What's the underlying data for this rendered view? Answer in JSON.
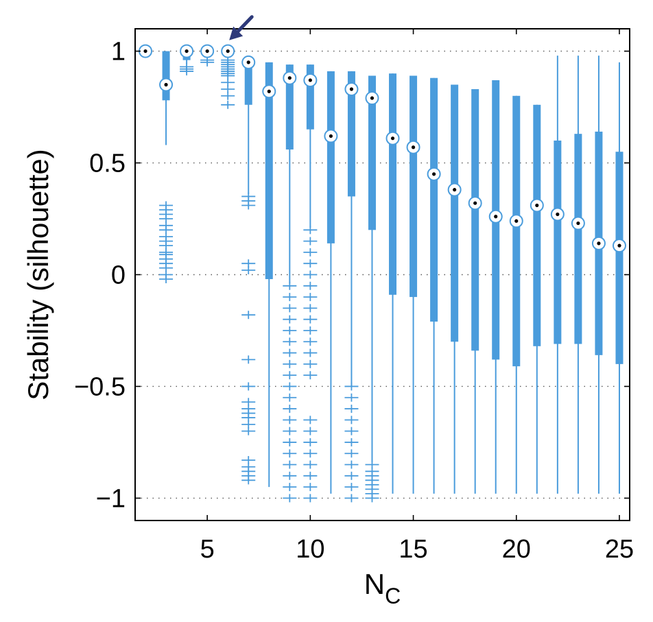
{
  "chart_data": {
    "type": "box",
    "xlabel": "N",
    "xlabel_subscript": "C",
    "ylabel": "Stability (silhouette)",
    "xlim": [
      1.5,
      25.5
    ],
    "ylim": [
      -1.1,
      1.1
    ],
    "x_ticks": [
      5,
      10,
      15,
      20,
      25
    ],
    "y_ticks": [
      1,
      0.5,
      0,
      -0.5,
      -1
    ],
    "y_tick_labels": [
      "1",
      "0.5",
      "0",
      "−0.5",
      "−1"
    ],
    "grid": "horizontal-dotted",
    "series_color": "#4a9cdc",
    "annotation_arrow": {
      "points_to_x": 6,
      "color": "#2e3a7a"
    },
    "boxes": [
      {
        "x": 2,
        "median": 1.0,
        "q1": 1.0,
        "q3": 1.0,
        "whisker_low": 1.0,
        "whisker_high": 1.0,
        "outliers": []
      },
      {
        "x": 3,
        "median": 0.85,
        "q1": 0.78,
        "q3": 1.0,
        "whisker_low": 0.58,
        "whisker_high": 1.0,
        "outliers": [
          0.31,
          0.29,
          0.27,
          0.25,
          0.22,
          0.2,
          0.17,
          0.15,
          0.13,
          0.1,
          0.09,
          0.07,
          0.05,
          0.03,
          0.0,
          -0.02
        ]
      },
      {
        "x": 4,
        "median": 1.0,
        "q1": 0.96,
        "q3": 1.0,
        "whisker_low": 0.94,
        "whisker_high": 1.0,
        "outliers": [
          0.93,
          0.92,
          0.91
        ]
      },
      {
        "x": 5,
        "median": 1.0,
        "q1": 0.98,
        "q3": 1.0,
        "whisker_low": 0.97,
        "whisker_high": 1.0,
        "outliers": [
          0.96,
          0.95
        ]
      },
      {
        "x": 6,
        "median": 1.0,
        "q1": 1.0,
        "q3": 1.0,
        "whisker_low": 1.0,
        "whisker_high": 1.0,
        "outliers": [
          0.96,
          0.95,
          0.94,
          0.93,
          0.92,
          0.91,
          0.9,
          0.89,
          0.86,
          0.83,
          0.8,
          0.76
        ]
      },
      {
        "x": 7,
        "median": 0.95,
        "q1": 0.76,
        "q3": 0.95,
        "whisker_low": 0.36,
        "whisker_high": 0.95,
        "outliers": [
          0.35,
          0.33,
          0.31,
          0.05,
          0.02,
          -0.18,
          -0.38,
          -0.5,
          -0.57,
          -0.6,
          -0.62,
          -0.64,
          -0.67,
          -0.7,
          -0.83,
          -0.86,
          -0.88,
          -0.9,
          -0.92
        ]
      },
      {
        "x": 8,
        "median": 0.82,
        "q1": -0.02,
        "q3": 0.95,
        "whisker_low": -0.95,
        "whisker_high": 0.95,
        "outliers": []
      },
      {
        "x": 9,
        "median": 0.88,
        "q1": 0.56,
        "q3": 0.94,
        "whisker_low": -0.04,
        "whisker_high": 0.94,
        "outliers": [
          -0.05,
          -0.1,
          -0.15,
          -0.2,
          -0.25,
          -0.3,
          -0.35,
          -0.4,
          -0.45,
          -0.5,
          -0.55,
          -0.6,
          -0.65,
          -0.7,
          -0.75,
          -0.8,
          -0.85,
          -0.9,
          -0.95,
          -1.0
        ]
      },
      {
        "x": 10,
        "median": 0.87,
        "q1": 0.65,
        "q3": 0.94,
        "whisker_low": 0.21,
        "whisker_high": 0.94,
        "outliers": [
          0.2,
          0.15,
          0.1,
          0.05,
          0.0,
          -0.05,
          -0.1,
          -0.15,
          -0.2,
          -0.25,
          -0.3,
          -0.35,
          -0.4,
          -0.45,
          -0.65,
          -0.7,
          -0.75,
          -0.8,
          -0.85,
          -0.9,
          -0.95,
          -1.0
        ]
      },
      {
        "x": 11,
        "median": 0.62,
        "q1": 0.14,
        "q3": 0.91,
        "whisker_low": -0.98,
        "whisker_high": 0.91,
        "outliers": []
      },
      {
        "x": 12,
        "median": 0.83,
        "q1": 0.35,
        "q3": 0.91,
        "whisker_low": -0.5,
        "whisker_high": 0.91,
        "outliers": [
          -0.5,
          -0.55,
          -0.6,
          -0.65,
          -0.7,
          -0.75,
          -0.8,
          -0.85,
          -0.9,
          -0.95,
          -1.0
        ]
      },
      {
        "x": 13,
        "median": 0.79,
        "q1": 0.2,
        "q3": 0.89,
        "whisker_low": -0.84,
        "whisker_high": 0.89,
        "outliers": [
          -0.85,
          -0.88,
          -0.9,
          -0.92,
          -0.94,
          -0.96,
          -0.98,
          -1.0
        ]
      },
      {
        "x": 14,
        "median": 0.61,
        "q1": -0.09,
        "q3": 0.9,
        "whisker_low": -0.98,
        "whisker_high": 0.9,
        "outliers": []
      },
      {
        "x": 15,
        "median": 0.57,
        "q1": -0.1,
        "q3": 0.89,
        "whisker_low": -0.98,
        "whisker_high": 0.89,
        "outliers": []
      },
      {
        "x": 16,
        "median": 0.45,
        "q1": -0.21,
        "q3": 0.88,
        "whisker_low": -0.98,
        "whisker_high": 0.88,
        "outliers": []
      },
      {
        "x": 17,
        "median": 0.38,
        "q1": -0.3,
        "q3": 0.85,
        "whisker_low": -0.98,
        "whisker_high": 0.85,
        "outliers": []
      },
      {
        "x": 18,
        "median": 0.32,
        "q1": -0.34,
        "q3": 0.83,
        "whisker_low": -0.98,
        "whisker_high": 0.83,
        "outliers": []
      },
      {
        "x": 19,
        "median": 0.26,
        "q1": -0.38,
        "q3": 0.87,
        "whisker_low": -0.98,
        "whisker_high": 0.87,
        "outliers": []
      },
      {
        "x": 20,
        "median": 0.24,
        "q1": -0.41,
        "q3": 0.8,
        "whisker_low": -0.98,
        "whisker_high": 0.8,
        "outliers": []
      },
      {
        "x": 21,
        "median": 0.31,
        "q1": -0.32,
        "q3": 0.76,
        "whisker_low": -0.98,
        "whisker_high": 0.76,
        "outliers": []
      },
      {
        "x": 22,
        "median": 0.27,
        "q1": -0.31,
        "q3": 0.6,
        "whisker_low": -0.98,
        "whisker_high": 0.98,
        "outliers": []
      },
      {
        "x": 23,
        "median": 0.23,
        "q1": -0.31,
        "q3": 0.63,
        "whisker_low": -0.98,
        "whisker_high": 0.98,
        "outliers": []
      },
      {
        "x": 24,
        "median": 0.14,
        "q1": -0.36,
        "q3": 0.64,
        "whisker_low": -0.98,
        "whisker_high": 0.98,
        "outliers": []
      },
      {
        "x": 25,
        "median": 0.13,
        "q1": -0.4,
        "q3": 0.55,
        "whisker_low": -0.98,
        "whisker_high": 0.95,
        "outliers": []
      }
    ]
  }
}
